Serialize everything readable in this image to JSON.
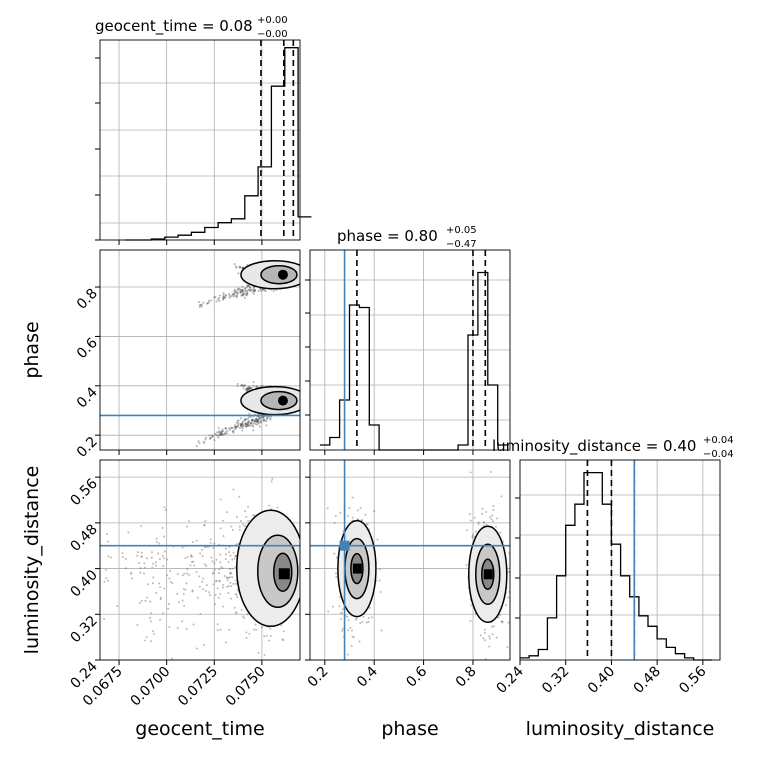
{
  "chart_data": {
    "type": "corner",
    "parameters": [
      "geocent_time",
      "phase",
      "luminosity_distance"
    ],
    "truth": {
      "phase": 0.28,
      "luminosity_distance": 0.44
    },
    "panels": {
      "geocent_time_hist": {
        "title_main": "geocent_time = 0.08",
        "title_sup": "+0.00",
        "title_sub": "−0.00",
        "quantile_lines": [
          0.07495,
          0.07615,
          0.07665
        ],
        "bin_edges": [
          0.0678,
          0.0685,
          0.0692,
          0.0699,
          0.0706,
          0.0713,
          0.072,
          0.0727,
          0.0734,
          0.0741,
          0.0748,
          0.0755,
          0.0762,
          0.0769,
          0.0776
        ],
        "counts": [
          0,
          0,
          0.5,
          1.5,
          2.5,
          4,
          6.5,
          9,
          11,
          23,
          38,
          80,
          100,
          12
        ]
      },
      "phase_hist": {
        "title_main": "phase = 0.80",
        "title_sup": "+0.05",
        "title_sub": "−0.47",
        "quantile_lines": [
          0.33,
          0.8,
          0.85
        ],
        "bin_edges": [
          0.18,
          0.22,
          0.26,
          0.3,
          0.34,
          0.38,
          0.42,
          0.46,
          0.5,
          0.54,
          0.58,
          0.62,
          0.66,
          0.7,
          0.74,
          0.78,
          0.82,
          0.86,
          0.9,
          0.94
        ],
        "counts": [
          2,
          5,
          20,
          58,
          57,
          10,
          0,
          0,
          0,
          0,
          0,
          0,
          0,
          0,
          2,
          46,
          71,
          26,
          2
        ]
      },
      "luminosity_distance_hist": {
        "title_main": "luminosity_distance = 0.40",
        "title_sup": "+0.04",
        "title_sub": "−0.04",
        "quantile_lines": [
          0.358,
          0.4,
          0.44
        ],
        "bin_edges": [
          0.24,
          0.256,
          0.272,
          0.288,
          0.304,
          0.32,
          0.336,
          0.352,
          0.368,
          0.384,
          0.4,
          0.416,
          0.432,
          0.448,
          0.464,
          0.48,
          0.496,
          0.512,
          0.528,
          0.544,
          0.56,
          0.576
        ],
        "counts": [
          1,
          2,
          5,
          20,
          40,
          64,
          74,
          89,
          89,
          74,
          55,
          40,
          30,
          21,
          16,
          10,
          6,
          3,
          1,
          0,
          0
        ]
      },
      "phase_vs_geocent_time": {
        "clusters": [
          {
            "x_start": 0.0714,
            "y_start": 0.72,
            "x_end": 0.076,
            "y_end": 0.83
          },
          {
            "x_start": 0.0735,
            "y_start": 0.88,
            "x_end": 0.076,
            "y_end": 0.85
          },
          {
            "x_start": 0.0714,
            "y_start": 0.16,
            "x_end": 0.0755,
            "y_end": 0.29
          },
          {
            "x_start": 0.0735,
            "y_start": 0.41,
            "x_end": 0.076,
            "y_end": 0.35
          }
        ]
      },
      "luminosity_distance_vs_geocent_time": {
        "center": {
          "x": 0.0762,
          "y": 0.39
        }
      },
      "luminosity_distance_vs_phase": {
        "centers": [
          {
            "x": 0.33,
            "y": 0.4
          },
          {
            "x": 0.86,
            "y": 0.39
          }
        ]
      }
    },
    "axes": {
      "geocent_time": {
        "xlim": [
          0.0665,
          0.077
        ],
        "ticks": [
          0.0675,
          0.07,
          0.0725,
          0.075
        ],
        "tick_labels": [
          "0.0675",
          "0.0700",
          "0.0725",
          "0.0750"
        ]
      },
      "phase": {
        "xlim": [
          0.14,
          0.95
        ],
        "ticks": [
          0.2,
          0.4,
          0.6,
          0.8
        ],
        "tick_labels": [
          "0.2",
          "0.4",
          "0.6",
          "0.8"
        ]
      },
      "luminosity_distance": {
        "xlim": [
          0.24,
          0.59
        ],
        "ticks": [
          0.24,
          0.32,
          0.4,
          0.48,
          0.56
        ],
        "tick_labels": [
          "0.24",
          "0.32",
          "0.40",
          "0.48",
          "0.56"
        ]
      }
    },
    "xlabels": [
      "geocent_time",
      "phase",
      "luminosity_distance"
    ],
    "ylabels": [
      "phase",
      "luminosity_distance"
    ],
    "grid": true,
    "colors": {
      "hist": "#000000",
      "contour": "#000000",
      "truth": "#4682b4",
      "points": "#555555"
    }
  }
}
